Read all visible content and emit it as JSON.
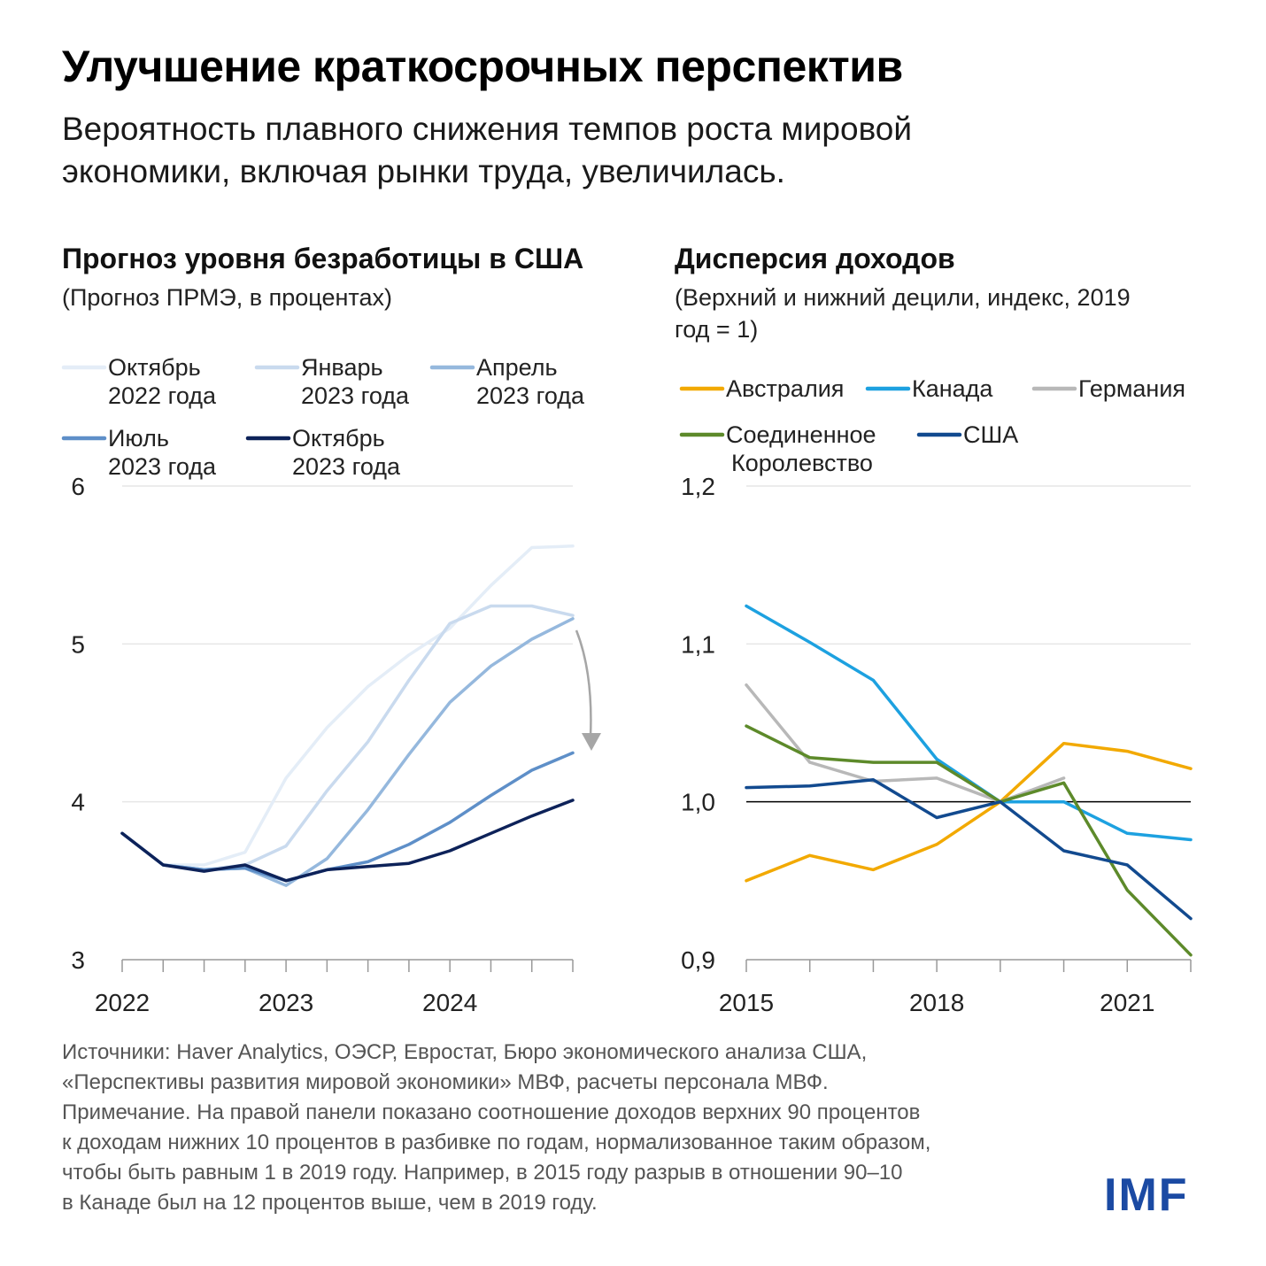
{
  "title": "Улучшение краткосрочных перспектив",
  "subtitle_lines": [
    "Вероятность плавного снижения темпов роста мировой",
    "экономики, включая рынки труда, увеличилась."
  ],
  "logo": "IMF",
  "footnote_lines": [
    "Источники: Haver Analytics, ОЭСР, Евростат, Бюро экономического анализа США,",
    "«Перспективы развития мировой экономики» МВФ, расчеты персонала МВФ.",
    "Примечание. На правой панели показано соотношение доходов верхних 90 процентов",
    "к доходам нижних 10 процентов в разбивке по годам, нормализованное таким образом,",
    "чтобы быть равным 1 в 2019 году. Например, в 2015 году разрыв в отношении 90–10",
    "в Канаде был на 12 процентов выше, чем в 2019 году."
  ],
  "chart_data": [
    {
      "type": "line",
      "title": "Прогноз уровня безработицы в США",
      "subtitle": "(Прогноз ПРМЭ, в процентах)",
      "x": [
        2022.0,
        2022.25,
        2022.5,
        2022.75,
        2023.0,
        2023.25,
        2023.5,
        2023.75,
        2024.0,
        2024.25,
        2024.5,
        2024.75
      ],
      "x_ticks": [
        2022,
        2023,
        2024
      ],
      "ylim": [
        3,
        6
      ],
      "y_ticks": [
        3,
        4,
        5,
        6
      ],
      "y_tick_labels": [
        "3",
        "4",
        "5",
        "6"
      ],
      "grid": true,
      "legend_position": "top",
      "series": [
        {
          "name": "Октябрь 2022 года",
          "label_lines": [
            "Октябрь",
            "2022 года"
          ],
          "color": "#e4edf7",
          "values": [
            3.8,
            3.6,
            3.6,
            3.68,
            4.15,
            4.47,
            4.73,
            4.93,
            5.1,
            5.37,
            5.61,
            5.62
          ]
        },
        {
          "name": "Январь 2023 года",
          "label_lines": [
            "Январь",
            "2023 года"
          ],
          "color": "#c9daee",
          "values": [
            3.8,
            3.6,
            3.57,
            3.6,
            3.72,
            4.07,
            4.38,
            4.77,
            5.13,
            5.24,
            5.24,
            5.18
          ]
        },
        {
          "name": "Апрель 2023 года",
          "label_lines": [
            "Апрель",
            "2023 года"
          ],
          "color": "#95b8dd",
          "values": [
            3.8,
            3.6,
            3.57,
            3.58,
            3.47,
            3.64,
            3.95,
            4.3,
            4.63,
            4.86,
            5.03,
            5.16
          ]
        },
        {
          "name": "Июль 2023 года",
          "label_lines": [
            "Июль",
            "2023 года"
          ],
          "color": "#5e8fc8",
          "values": [
            3.8,
            3.6,
            3.57,
            3.58,
            3.5,
            3.57,
            3.62,
            3.73,
            3.87,
            4.04,
            4.2,
            4.31
          ]
        },
        {
          "name": "Октябрь 2023 года",
          "label_lines": [
            "Октябрь",
            "2023 года"
          ],
          "color": "#0d2259",
          "values": [
            3.8,
            3.6,
            3.56,
            3.6,
            3.5,
            3.57,
            3.59,
            3.61,
            3.69,
            3.8,
            3.91,
            4.01
          ]
        }
      ]
    },
    {
      "type": "line",
      "title": "Дисперсия доходов",
      "subtitle": "(Верхний и нижний децили, индекс, 2019 год = 1)",
      "x": [
        2015,
        2016,
        2017,
        2018,
        2019,
        2020,
        2021,
        2022
      ],
      "x_ticks": [
        2015,
        2018,
        2021
      ],
      "ylim": [
        0.9,
        1.2
      ],
      "y_ticks": [
        0.9,
        1.0,
        1.1,
        1.2
      ],
      "y_tick_labels": [
        "0,9",
        "1,0",
        "1,1",
        "1,2"
      ],
      "grid": true,
      "legend_position": "top",
      "series": [
        {
          "name": "Австралия",
          "label_lines": [
            "Австралия"
          ],
          "color": "#f2a900",
          "values": [
            0.95,
            0.966,
            0.957,
            0.973,
            1.0,
            1.037,
            1.032,
            1.021
          ]
        },
        {
          "name": "Канада",
          "label_lines": [
            "Канада"
          ],
          "color": "#1da1e0",
          "values": [
            1.124,
            1.101,
            1.077,
            1.027,
            1.0,
            1.0,
            0.98,
            0.976
          ]
        },
        {
          "name": "Германия",
          "label_lines": [
            "Германия"
          ],
          "color": "#b8b8b8",
          "values": [
            1.074,
            1.025,
            1.013,
            1.015,
            1.0,
            1.015,
            null,
            null
          ]
        },
        {
          "name": "Соединенное Королевство",
          "label_lines": [
            "Соединенное",
            "Королевство"
          ],
          "color": "#5d8a2a",
          "values": [
            1.048,
            1.028,
            1.025,
            1.025,
            1.0,
            1.012,
            0.944,
            0.903
          ]
        },
        {
          "name": "США",
          "label_lines": [
            "США"
          ],
          "color": "#124a8f",
          "values": [
            1.009,
            1.01,
            1.014,
            0.99,
            1.0,
            0.969,
            0.96,
            0.926
          ]
        }
      ]
    }
  ]
}
